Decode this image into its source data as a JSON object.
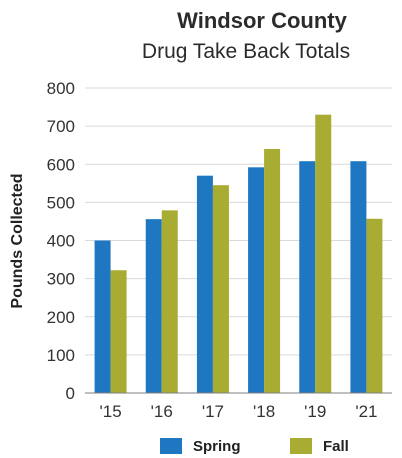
{
  "chart_data": {
    "type": "bar",
    "title": "Windsor County",
    "subtitle": "Drug Take Back Totals",
    "ylabel": "Pounds Collected",
    "xlabel": "",
    "categories": [
      "'15",
      "'16",
      "'17",
      "'18",
      "'19",
      "'21"
    ],
    "series": [
      {
        "name": "Spring",
        "values": [
          400,
          456,
          570,
          592,
          608,
          608
        ],
        "color": "#1f77c1"
      },
      {
        "name": "Fall",
        "values": [
          322,
          479,
          545,
          640,
          730,
          457
        ],
        "color": "#a8ac32"
      }
    ],
    "ylim": [
      0,
      800
    ],
    "yticks": [
      0,
      100,
      200,
      300,
      400,
      500,
      600,
      700,
      800
    ],
    "grid": true,
    "legend": "bottom"
  }
}
